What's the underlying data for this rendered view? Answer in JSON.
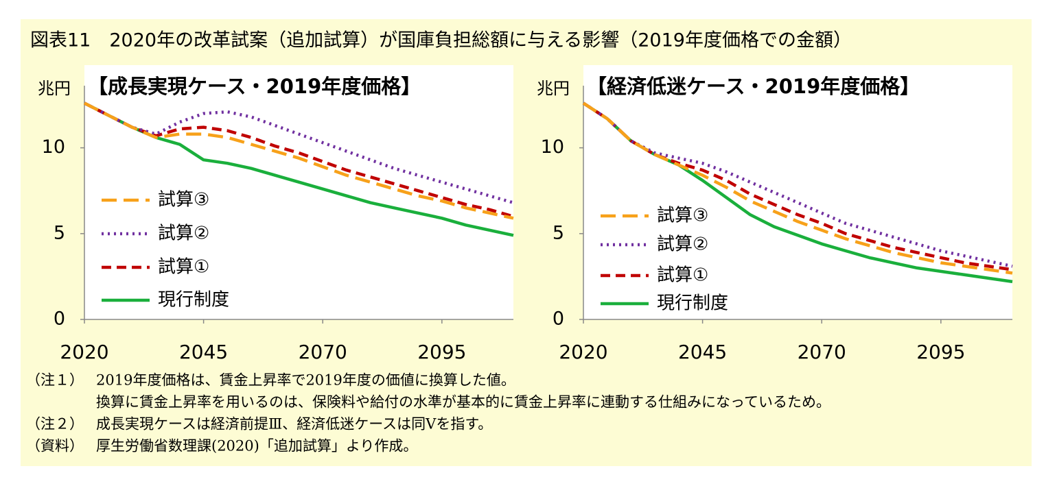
{
  "title": "図表11　2020年の改革試案（追加試算）が国庫負担総額に与える影響（2019年度価格での金額）",
  "notes": [
    {
      "label": "（注１）",
      "lines": [
        "2019年度価格は、賃金上昇率で2019年度の価値に換算した値。",
        "換算に賃金上昇率を用いるのは、保険料や給付の水準が基本的に賃金上昇率に連動する仕組みになっているため。"
      ]
    },
    {
      "label": "（注２）",
      "lines": [
        "成長実現ケースは経済前提Ⅲ、経済低迷ケースは同Ⅴを指す。"
      ]
    },
    {
      "label": "（資料）",
      "lines": [
        "厚生労働省数理課(2020)「追加試算」より作成。"
      ]
    }
  ],
  "chart_data": [
    {
      "type": "line",
      "title": "【成長実現ケース・2019年度価格】",
      "y_label": "兆円",
      "x": [
        2020,
        2025,
        2030,
        2035,
        2040,
        2045,
        2050,
        2055,
        2060,
        2065,
        2070,
        2075,
        2080,
        2085,
        2090,
        2095,
        2100,
        2105,
        2110
      ],
      "xlim": [
        2020,
        2110
      ],
      "xticks": [
        2020,
        2045,
        2070,
        2095
      ],
      "ylim": [
        0,
        13.5
      ],
      "yticks": [
        0,
        5,
        10
      ],
      "grid": false,
      "legend": "left",
      "series": [
        {
          "name": "試算③",
          "color": "#f7a11a",
          "style": "longdash",
          "values": [
            12.6,
            11.9,
            11.2,
            10.6,
            10.8,
            10.8,
            10.6,
            10.2,
            9.8,
            9.4,
            8.9,
            8.4,
            8.0,
            7.6,
            7.2,
            6.9,
            6.5,
            6.2,
            5.9
          ]
        },
        {
          "name": "試算②",
          "color": "#7030a0",
          "style": "dotted",
          "values": [
            12.6,
            11.9,
            11.2,
            10.8,
            11.5,
            12.0,
            12.1,
            11.8,
            11.3,
            10.8,
            10.3,
            9.8,
            9.3,
            8.8,
            8.4,
            8.0,
            7.6,
            7.2,
            6.8
          ]
        },
        {
          "name": "試算①",
          "color": "#c00000",
          "style": "dashed",
          "values": [
            12.6,
            11.9,
            11.2,
            10.7,
            11.1,
            11.2,
            11.0,
            10.6,
            10.1,
            9.7,
            9.2,
            8.7,
            8.3,
            7.9,
            7.5,
            7.1,
            6.7,
            6.4,
            6.0
          ]
        },
        {
          "name": "現行制度",
          "color": "#1aaf3c",
          "style": "solid",
          "values": [
            12.6,
            11.9,
            11.2,
            10.6,
            10.2,
            9.3,
            9.1,
            8.8,
            8.4,
            8.0,
            7.6,
            7.2,
            6.8,
            6.5,
            6.2,
            5.9,
            5.5,
            5.2,
            4.9
          ]
        }
      ]
    },
    {
      "type": "line",
      "title": "【経済低迷ケース・2019年度価格】",
      "y_label": "兆円",
      "x": [
        2020,
        2025,
        2030,
        2035,
        2040,
        2045,
        2050,
        2055,
        2060,
        2065,
        2070,
        2075,
        2080,
        2085,
        2090,
        2095,
        2100,
        2105,
        2110
      ],
      "xlim": [
        2020,
        2110
      ],
      "xticks": [
        2020,
        2045,
        2070,
        2095
      ],
      "ylim": [
        0,
        13.5
      ],
      "yticks": [
        0,
        5,
        10
      ],
      "grid": false,
      "legend": "left",
      "series": [
        {
          "name": "試算③",
          "color": "#f7a11a",
          "style": "longdash",
          "values": [
            12.6,
            11.7,
            10.4,
            9.6,
            9.0,
            8.4,
            7.7,
            6.9,
            6.3,
            5.7,
            5.2,
            4.7,
            4.3,
            3.9,
            3.6,
            3.3,
            3.1,
            2.9,
            2.7
          ]
        },
        {
          "name": "試算②",
          "color": "#7030a0",
          "style": "dotted",
          "values": [
            12.6,
            11.7,
            10.4,
            9.7,
            9.4,
            9.1,
            8.6,
            8.0,
            7.4,
            6.8,
            6.2,
            5.6,
            5.2,
            4.8,
            4.4,
            4.0,
            3.7,
            3.4,
            3.1
          ]
        },
        {
          "name": "試算①",
          "color": "#c00000",
          "style": "dashed",
          "values": [
            12.6,
            11.7,
            10.4,
            9.6,
            9.1,
            8.7,
            8.1,
            7.3,
            6.7,
            6.1,
            5.6,
            5.0,
            4.6,
            4.2,
            3.9,
            3.6,
            3.3,
            3.1,
            2.9
          ]
        },
        {
          "name": "現行制度",
          "color": "#1aaf3c",
          "style": "solid",
          "values": [
            12.6,
            11.7,
            10.4,
            9.6,
            9.0,
            8.1,
            7.1,
            6.1,
            5.4,
            4.9,
            4.4,
            4.0,
            3.6,
            3.3,
            3.0,
            2.8,
            2.6,
            2.4,
            2.2
          ]
        }
      ]
    }
  ]
}
